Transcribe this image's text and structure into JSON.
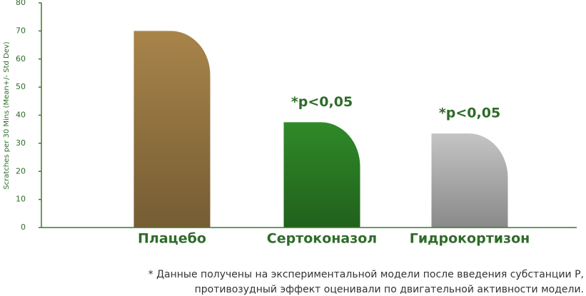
{
  "chart_data": {
    "type": "bar",
    "y_axis_label": "Scratches per 30 Mins (Mean+/- Std Dev)",
    "categories": [
      "Плацебо",
      "Сертоконазол",
      "Гидрокортизон"
    ],
    "values": [
      70,
      37.5,
      33.5
    ],
    "colors": [
      "#a8844a",
      "#2f8a28",
      "#c4c4c4"
    ],
    "value_annotations": [
      null,
      "*p<0,05",
      "*p<0,05"
    ],
    "ylim": [
      0,
      80
    ],
    "yticks": [
      0,
      10,
      20,
      30,
      40,
      50,
      60,
      70,
      80
    ],
    "footnote": [
      "* Данные получены на экспериментальной модели после введения субстанции Р,",
      "противозудный эффект оценивали по двигательной активности модели."
    ]
  }
}
